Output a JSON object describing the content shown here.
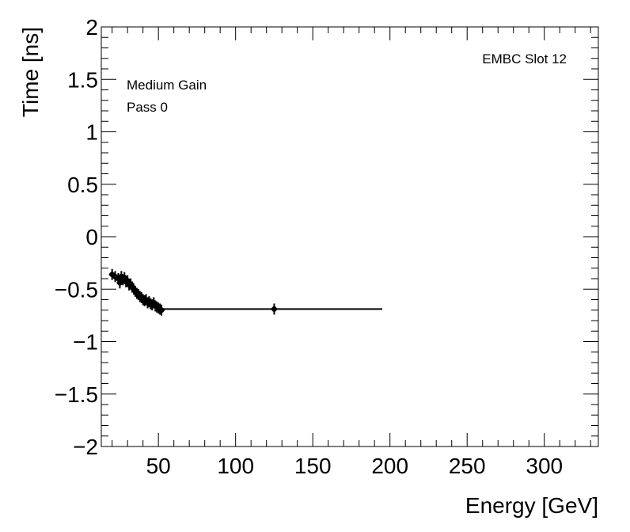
{
  "chart_data": {
    "type": "scatter",
    "xlabel": "Energy [GeV]",
    "ylabel": "Time [ns]",
    "xlim": [
      13,
      335
    ],
    "ylim": [
      -2,
      2
    ],
    "x_ticks": [
      50,
      100,
      150,
      200,
      250,
      300
    ],
    "y_ticks": [
      -2,
      -1.5,
      -1,
      -0.5,
      0,
      0.5,
      1,
      1.5,
      2
    ],
    "x_tick_labels": [
      "50",
      "100",
      "150",
      "200",
      "250",
      "300"
    ],
    "y_tick_labels": [
      "−2",
      "−1.5",
      "−1",
      "−0.5",
      "0",
      "0.5",
      "1",
      "1.5",
      "2"
    ],
    "annotations": {
      "top_right": "EMBC Slot 12",
      "line1": "Medium Gain",
      "line2": "Pass 0"
    },
    "grid": false,
    "points": [
      {
        "x": 20,
        "y": -0.36
      },
      {
        "x": 22,
        "y": -0.38
      },
      {
        "x": 24,
        "y": -0.4
      },
      {
        "x": 25,
        "y": -0.44
      },
      {
        "x": 26,
        "y": -0.38
      },
      {
        "x": 27,
        "y": -0.41
      },
      {
        "x": 28,
        "y": -0.39
      },
      {
        "x": 29,
        "y": -0.43
      },
      {
        "x": 30,
        "y": -0.42
      },
      {
        "x": 31,
        "y": -0.46
      },
      {
        "x": 32,
        "y": -0.45
      },
      {
        "x": 33,
        "y": -0.48
      },
      {
        "x": 34,
        "y": -0.5
      },
      {
        "x": 35,
        "y": -0.52
      },
      {
        "x": 36,
        "y": -0.54
      },
      {
        "x": 37,
        "y": -0.55
      },
      {
        "x": 38,
        "y": -0.57
      },
      {
        "x": 39,
        "y": -0.58
      },
      {
        "x": 40,
        "y": -0.6
      },
      {
        "x": 41,
        "y": -0.61
      },
      {
        "x": 42,
        "y": -0.6
      },
      {
        "x": 43,
        "y": -0.63
      },
      {
        "x": 44,
        "y": -0.62
      },
      {
        "x": 45,
        "y": -0.64
      },
      {
        "x": 46,
        "y": -0.65
      },
      {
        "x": 47,
        "y": -0.63
      },
      {
        "x": 48,
        "y": -0.66
      },
      {
        "x": 49,
        "y": -0.67
      },
      {
        "x": 50,
        "y": -0.68
      },
      {
        "x": 51,
        "y": -0.69
      },
      {
        "x": 52,
        "y": -0.7
      },
      {
        "x": 125,
        "y": -0.69
      }
    ],
    "fit_line": {
      "x": [
        51,
        195
      ],
      "y": [
        -0.69,
        -0.69
      ]
    }
  }
}
